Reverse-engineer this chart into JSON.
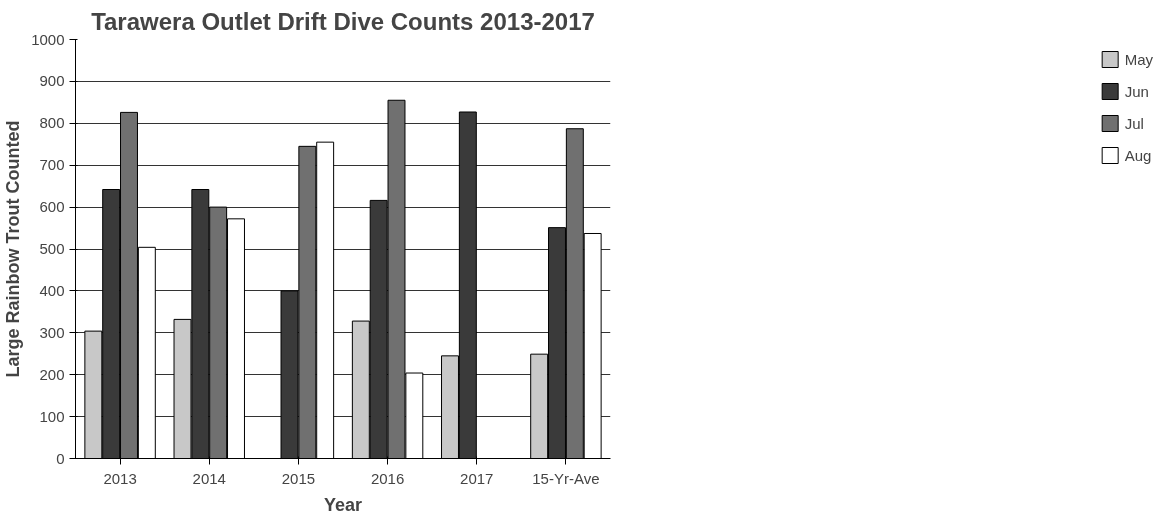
{
  "chart_data": {
    "type": "bar",
    "title": "Tarawera Outlet Drift Dive Counts 2013-2017",
    "xlabel": "Year",
    "ylabel": "Large Rainbow Trout Counted",
    "categories": [
      "2013",
      "2014",
      "2015",
      "2016",
      "2017",
      "15-Yr-Ave"
    ],
    "series": [
      {
        "name": "May",
        "color": "#c8c8c8",
        "values": [
          304,
          332,
          null,
          328,
          245,
          249
        ]
      },
      {
        "name": "Jun",
        "color": "#3a3a3a",
        "values": [
          642,
          642,
          400,
          616,
          827,
          551
        ]
      },
      {
        "name": "Jul",
        "color": "#707070",
        "values": [
          826,
          600,
          745,
          855,
          null,
          787
        ]
      },
      {
        "name": "Aug",
        "color": "#ffffff",
        "values": [
          504,
          572,
          755,
          204,
          null,
          537
        ]
      }
    ],
    "ylim": [
      0,
      1000
    ],
    "yticks": [
      0,
      100,
      200,
      300,
      400,
      500,
      600,
      700,
      800,
      900,
      1000
    ],
    "grid": "y",
    "legend": "right"
  }
}
